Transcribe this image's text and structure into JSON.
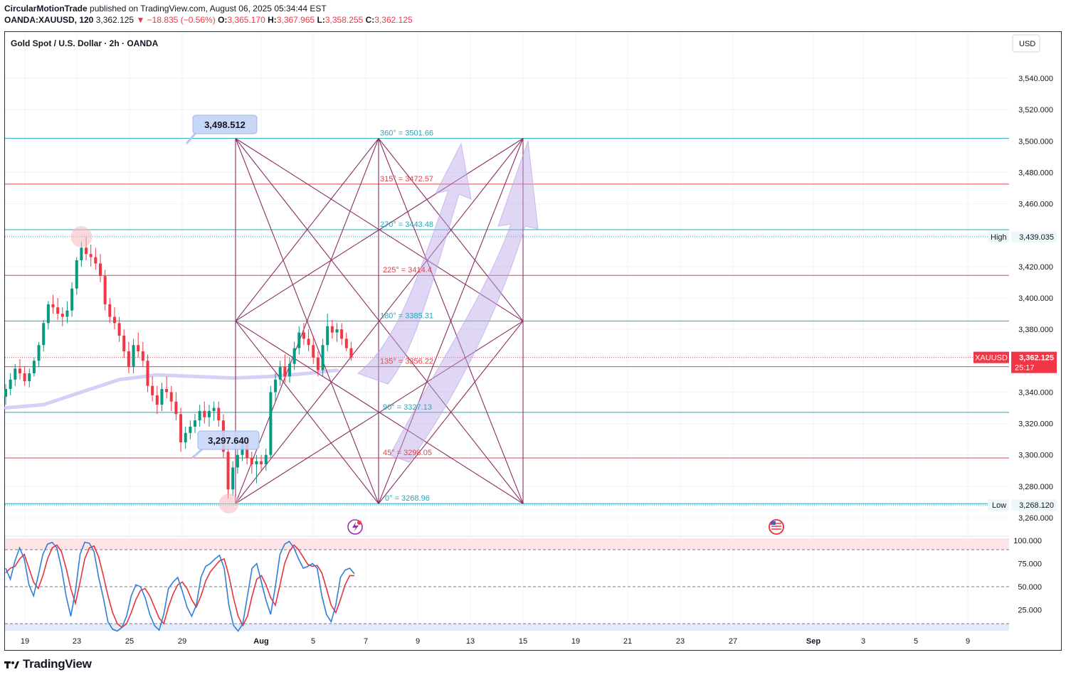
{
  "header": {
    "line1_author": "CircularMotionTrade",
    "line1_rest": " published on TradingView.com, August 06, 2025 05:34:44 EST",
    "symbol": "OANDA:XAUUSD, 120",
    "last": "3,362.125",
    "change": "▼ −18.835 (−0.56%)",
    "o_label": "O:",
    "o": "3,365.170",
    "h_label": "H:",
    "h": "3,367.965",
    "l_label": "L:",
    "l": "3,358.255",
    "c_label": "C:",
    "c": "3,362.125"
  },
  "legend_title": "Gold Spot / U.S. Dollar · 2h · OANDA",
  "currency_button": "USD",
  "colors": {
    "teal": "#22a8b8",
    "red": "#e0454f",
    "purple": "#8b2e64",
    "stoch": "#2f7fd8",
    "stoch_signal": "#e53340",
    "band": "#c9c5f5",
    "arrow": "#b9a6e6"
  },
  "chart_data": {
    "type": "line",
    "title": "Gold Spot / U.S. Dollar · 2h · OANDA",
    "ylim": [
      3250,
      3555
    ],
    "y_ticks": [
      "3,540.000",
      "3,520.000",
      "3,500.000",
      "3,480.000",
      "3,460.000",
      "3,440.000",
      "3,420.000",
      "3,400.000",
      "3,380.000",
      "3,360.000",
      "3,340.000",
      "3,320.000",
      "3,300.000",
      "3,280.000",
      "3,260.000"
    ],
    "y_tick_values": [
      3540,
      3520,
      3500,
      3480,
      3460,
      3440,
      3420,
      3400,
      3380,
      3360,
      3340,
      3320,
      3300,
      3280,
      3260
    ],
    "x_ticks": [
      "19",
      "23",
      "25",
      "29",
      "Aug",
      "5",
      "7",
      "9",
      "13",
      "15",
      "19",
      "21",
      "23",
      "27",
      "Sep",
      "3",
      "5",
      "9"
    ],
    "gann_levels": [
      {
        "label": "360° = 3501.66",
        "value": 3501.66,
        "color": "teal"
      },
      {
        "label": "315° = 3472.57",
        "value": 3472.57,
        "color": "red"
      },
      {
        "label": "270° = 3443.48",
        "value": 3443.48,
        "color": "teal"
      },
      {
        "label": "225° = 3414.4",
        "value": 3414.4,
        "color": "red"
      },
      {
        "label": "180° = 3385.31",
        "value": 3385.31,
        "color": "teal"
      },
      {
        "label": "135° = 3356.22",
        "value": 3356.22,
        "color": "red"
      },
      {
        "label": "90° = 3327.13",
        "value": 3327.13,
        "color": "teal"
      },
      {
        "label": "45° = 3298.05",
        "value": 3298.05,
        "color": "red"
      },
      {
        "label": "0° = 3268.96",
        "value": 3268.96,
        "color": "teal"
      }
    ],
    "callouts": [
      {
        "label": "3,498.512",
        "value": 3498.512
      },
      {
        "label": "3,297.640",
        "value": 3297.64
      }
    ],
    "high": {
      "label": "High",
      "value": 3439.035,
      "value_label": "3,439.035"
    },
    "low": {
      "label": "Low",
      "value": 3268.12,
      "value_label": "3,268.120"
    },
    "current": {
      "symbol": "XAUUSD",
      "value": 3362.125,
      "value_label": "3,362.125",
      "countdown": "25:17"
    },
    "candles": [
      [
        0,
        3337,
        3345,
        3332,
        3342
      ],
      [
        1,
        3342,
        3352,
        3338,
        3348
      ],
      [
        2,
        3348,
        3358,
        3344,
        3355
      ],
      [
        3,
        3355,
        3361,
        3348,
        3352
      ],
      [
        4,
        3352,
        3356,
        3344,
        3347
      ],
      [
        5,
        3347,
        3355,
        3343,
        3352
      ],
      [
        6,
        3352,
        3362,
        3350,
        3360
      ],
      [
        7,
        3360,
        3372,
        3356,
        3370
      ],
      [
        8,
        3370,
        3386,
        3366,
        3384
      ],
      [
        9,
        3384,
        3398,
        3380,
        3396
      ],
      [
        10,
        3396,
        3402,
        3390,
        3394
      ],
      [
        11,
        3394,
        3400,
        3386,
        3390
      ],
      [
        12,
        3390,
        3394,
        3382,
        3388
      ],
      [
        13,
        3388,
        3398,
        3384,
        3392
      ],
      [
        14,
        3392,
        3410,
        3388,
        3406
      ],
      [
        15,
        3406,
        3426,
        3402,
        3424
      ],
      [
        16,
        3424,
        3436,
        3420,
        3432
      ],
      [
        17,
        3432,
        3439,
        3424,
        3428
      ],
      [
        18,
        3428,
        3434,
        3420,
        3426
      ],
      [
        19,
        3426,
        3432,
        3418,
        3422
      ],
      [
        20,
        3422,
        3428,
        3410,
        3414
      ],
      [
        21,
        3414,
        3418,
        3392,
        3396
      ],
      [
        22,
        3396,
        3400,
        3384,
        3388
      ],
      [
        23,
        3388,
        3394,
        3380,
        3384
      ],
      [
        24,
        3384,
        3388,
        3372,
        3376
      ],
      [
        25,
        3376,
        3380,
        3362,
        3366
      ],
      [
        26,
        3366,
        3372,
        3352,
        3356
      ],
      [
        27,
        3356,
        3374,
        3352,
        3370
      ],
      [
        28,
        3370,
        3378,
        3362,
        3366
      ],
      [
        29,
        3366,
        3372,
        3356,
        3360
      ],
      [
        30,
        3360,
        3364,
        3340,
        3344
      ],
      [
        31,
        3344,
        3350,
        3334,
        3338
      ],
      [
        32,
        3338,
        3344,
        3326,
        3332
      ],
      [
        33,
        3332,
        3346,
        3328,
        3342
      ],
      [
        34,
        3342,
        3350,
        3336,
        3340
      ],
      [
        35,
        3340,
        3344,
        3328,
        3334
      ],
      [
        36,
        3334,
        3340,
        3322,
        3326
      ],
      [
        37,
        3326,
        3330,
        3302,
        3308
      ],
      [
        38,
        3308,
        3318,
        3304,
        3314
      ],
      [
        39,
        3314,
        3322,
        3310,
        3318
      ],
      [
        40,
        3318,
        3326,
        3314,
        3322
      ],
      [
        41,
        3322,
        3332,
        3318,
        3328
      ],
      [
        42,
        3328,
        3334,
        3320,
        3324
      ],
      [
        43,
        3324,
        3332,
        3318,
        3328
      ],
      [
        44,
        3328,
        3334,
        3322,
        3330
      ],
      [
        45,
        3330,
        3334,
        3318,
        3322
      ],
      [
        46,
        3322,
        3326,
        3298,
        3302
      ],
      [
        47,
        3302,
        3306,
        3272,
        3278
      ],
      [
        48,
        3278,
        3296,
        3274,
        3292
      ],
      [
        49,
        3292,
        3304,
        3288,
        3300
      ],
      [
        50,
        3300,
        3312,
        3296,
        3308
      ],
      [
        51,
        3308,
        3312,
        3294,
        3298
      ],
      [
        52,
        3298,
        3302,
        3288,
        3294
      ],
      [
        53,
        3294,
        3300,
        3282,
        3296
      ],
      [
        54,
        3296,
        3300,
        3290,
        3294
      ],
      [
        55,
        3294,
        3304,
        3290,
        3300
      ],
      [
        56,
        3300,
        3344,
        3298,
        3340
      ],
      [
        57,
        3340,
        3352,
        3334,
        3348
      ],
      [
        58,
        3348,
        3360,
        3344,
        3356
      ],
      [
        59,
        3356,
        3364,
        3346,
        3350
      ],
      [
        60,
        3350,
        3362,
        3346,
        3358
      ],
      [
        61,
        3358,
        3372,
        3354,
        3368
      ],
      [
        62,
        3368,
        3382,
        3364,
        3378
      ],
      [
        63,
        3378,
        3384,
        3370,
        3374
      ],
      [
        64,
        3374,
        3380,
        3366,
        3370
      ],
      [
        65,
        3370,
        3376,
        3358,
        3362
      ],
      [
        66,
        3362,
        3366,
        3350,
        3354
      ],
      [
        67,
        3354,
        3374,
        3350,
        3370
      ],
      [
        68,
        3370,
        3390,
        3366,
        3382
      ],
      [
        69,
        3382,
        3386,
        3374,
        3378
      ],
      [
        70,
        3378,
        3384,
        3372,
        3380
      ],
      [
        71,
        3380,
        3384,
        3370,
        3374
      ],
      [
        72,
        3374,
        3378,
        3366,
        3368
      ],
      [
        73,
        3368,
        3372,
        3360,
        3362
      ]
    ],
    "ma_band": [
      [
        0,
        3330
      ],
      [
        8,
        3332
      ],
      [
        16,
        3340
      ],
      [
        24,
        3348
      ],
      [
        32,
        3351
      ],
      [
        40,
        3350
      ],
      [
        48,
        3349
      ],
      [
        56,
        3350
      ],
      [
        64,
        3352
      ],
      [
        70,
        3354
      ]
    ],
    "stoch_ylim": [
      0,
      100
    ],
    "stoch_ticks": [
      "100.000",
      "75.000",
      "50.000",
      "25.000"
    ],
    "stoch_tick_values": [
      100,
      75,
      50,
      25
    ],
    "stoch_k": [
      70,
      58,
      78,
      92,
      80,
      52,
      40,
      62,
      85,
      96,
      98,
      92,
      70,
      40,
      18,
      45,
      85,
      98,
      97,
      88,
      60,
      38,
      12,
      4,
      2,
      6,
      18,
      40,
      52,
      50,
      38,
      20,
      8,
      3,
      20,
      48,
      55,
      60,
      45,
      28,
      18,
      30,
      60,
      72,
      75,
      80,
      84,
      70,
      30,
      8,
      2,
      10,
      40,
      70,
      75,
      55,
      35,
      20,
      50,
      85,
      96,
      99,
      92,
      80,
      70,
      72,
      75,
      70,
      40,
      20,
      12,
      30,
      60,
      68,
      70,
      64
    ],
    "stoch_d": [
      65,
      70,
      72,
      80,
      85,
      70,
      55,
      48,
      62,
      80,
      92,
      95,
      88,
      70,
      48,
      32,
      55,
      80,
      92,
      94,
      82,
      62,
      40,
      22,
      10,
      6,
      10,
      22,
      36,
      46,
      48,
      40,
      28,
      16,
      10,
      28,
      42,
      52,
      55,
      48,
      36,
      28,
      40,
      56,
      66,
      72,
      78,
      80,
      62,
      38,
      18,
      8,
      18,
      40,
      58,
      62,
      52,
      38,
      30,
      52,
      75,
      88,
      95,
      90,
      82,
      74,
      72,
      73,
      65,
      48,
      30,
      22,
      36,
      52,
      62,
      62
    ]
  },
  "footer": {
    "brand": "TradingView"
  }
}
